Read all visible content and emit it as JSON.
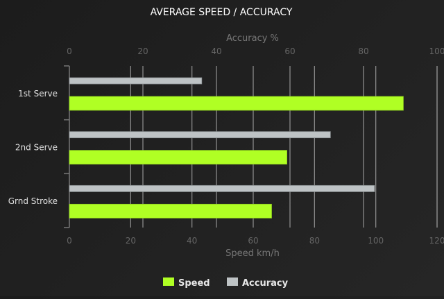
{
  "chart_data": {
    "type": "bar",
    "orientation": "horizontal",
    "title": "AVERAGE SPEED / ACCURACY",
    "categories": [
      "1st Serve",
      "2nd Serve",
      "Grnd Stroke"
    ],
    "series": [
      {
        "name": "Speed",
        "axis": "bottom",
        "color": "#b0ff24",
        "values": [
          109,
          71,
          66
        ]
      },
      {
        "name": "Accuracy",
        "axis": "top",
        "color": "#bec3c5",
        "values": [
          36,
          71,
          83
        ]
      }
    ],
    "xaxis_bottom": {
      "label": "Speed km/h",
      "range": [
        0,
        120
      ],
      "ticks": [
        0,
        20,
        40,
        60,
        80,
        100,
        120
      ]
    },
    "xaxis_top": {
      "label": "Accuracy %",
      "range": [
        0,
        100
      ],
      "ticks": [
        0,
        20,
        40,
        60,
        80,
        100
      ]
    },
    "grid": true,
    "legend_position": "bottom"
  }
}
